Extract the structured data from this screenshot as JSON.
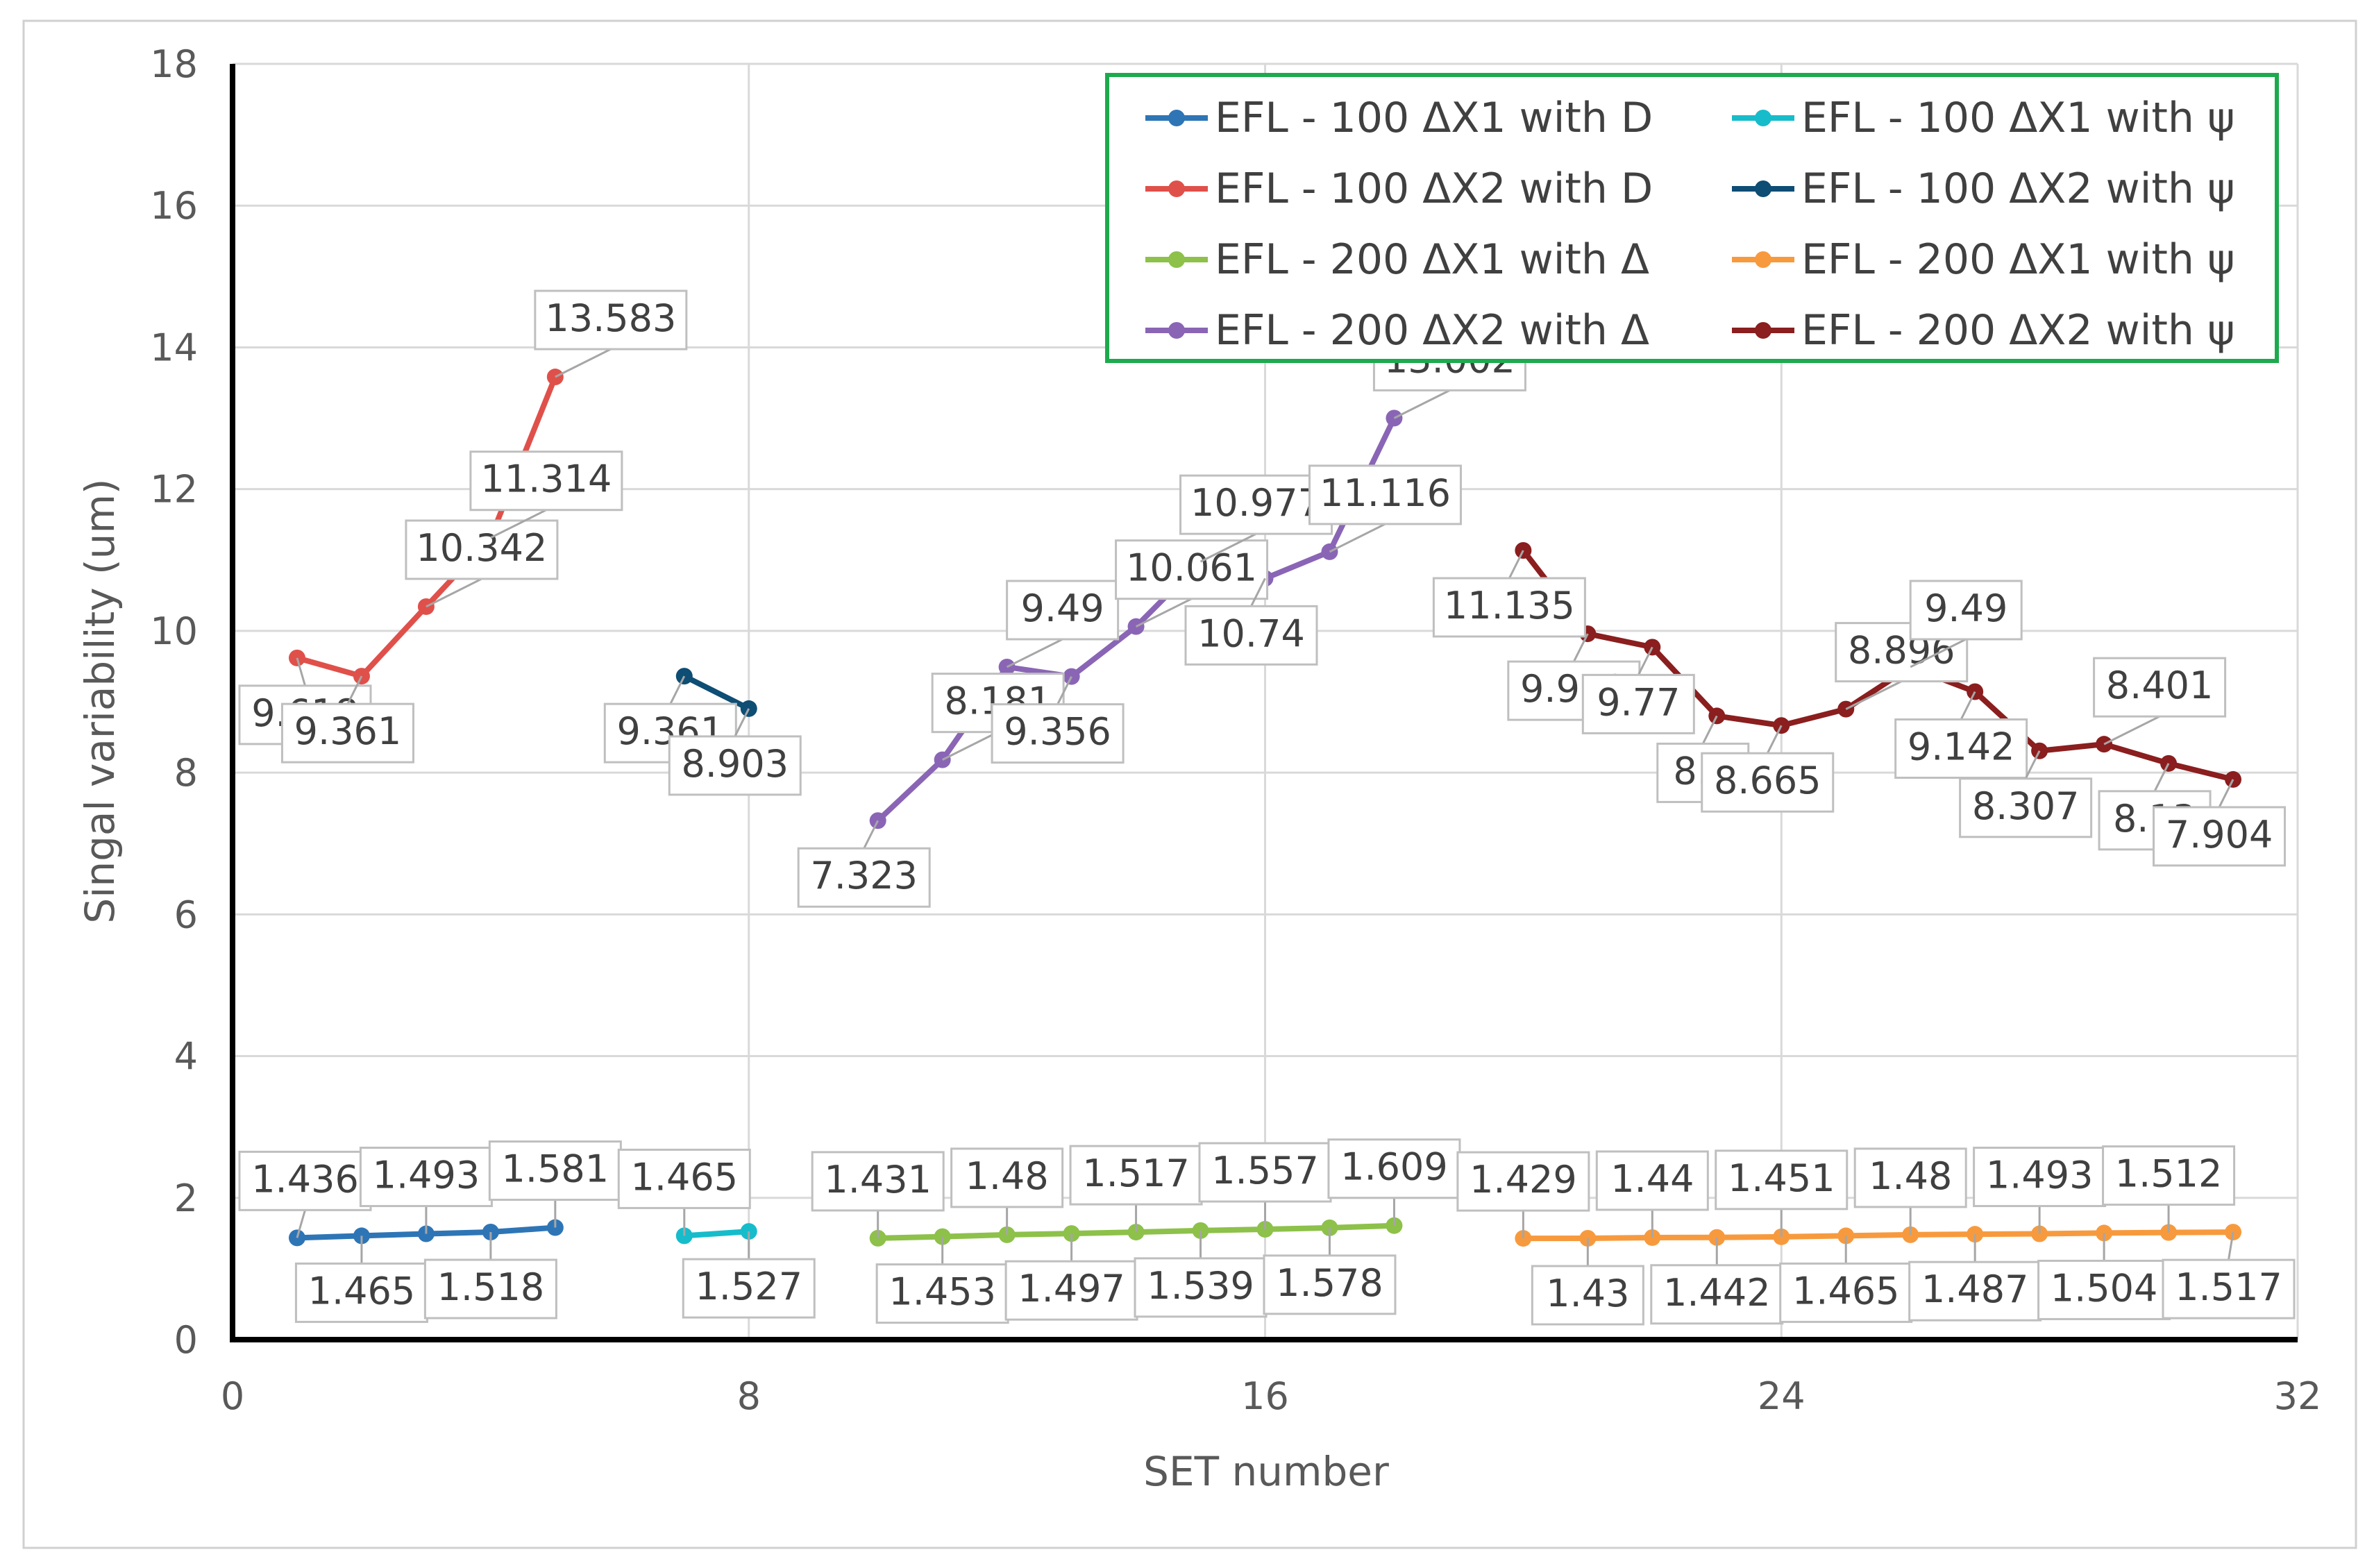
{
  "chart_data": {
    "type": "line",
    "title": "",
    "xlabel": "SET number",
    "ylabel": "Singal variability (um)",
    "xlim": [
      0,
      32
    ],
    "ylim": [
      0,
      18
    ],
    "xticks": [
      0,
      8,
      16,
      24,
      32
    ],
    "yticks": [
      0,
      2,
      4,
      6,
      8,
      10,
      12,
      14,
      16,
      18
    ],
    "grid": true,
    "legend_position": "top-right",
    "series": [
      {
        "name": "EFL - 100 ΔX1 with D",
        "color": "#2E75B6",
        "x": [
          1,
          2,
          3,
          4,
          5
        ],
        "values": [
          1.436,
          1.465,
          1.493,
          1.518,
          1.581
        ]
      },
      {
        "name": "EFL - 100 ΔX1 with ψ",
        "color": "#17BCCB",
        "x": [
          7,
          8
        ],
        "values": [
          1.465,
          1.527
        ]
      },
      {
        "name": "EFL - 100 ΔX2 with D",
        "color": "#E0504A",
        "x": [
          1,
          2,
          3,
          4,
          5
        ],
        "values": [
          9.618,
          9.361,
          10.342,
          11.314,
          13.583
        ]
      },
      {
        "name": "EFL - 100 ΔX2 with ψ",
        "color": "#0E4D74",
        "x": [
          7,
          8
        ],
        "values": [
          9.361,
          8.903
        ]
      },
      {
        "name": "EFL - 200 ΔX1 with Δ",
        "color": "#8DC14A",
        "x": [
          10,
          11,
          12,
          13,
          14,
          15,
          16,
          17,
          18
        ],
        "values": [
          1.431,
          1.453,
          1.48,
          1.497,
          1.517,
          1.539,
          1.557,
          1.578,
          1.609
        ]
      },
      {
        "name": "EFL - 200 ΔX1 with ψ",
        "color": "#F79A3E",
        "x": [
          20,
          21,
          22,
          23,
          24,
          25,
          26,
          27,
          28,
          29,
          30,
          31
        ],
        "values": [
          1.429,
          1.43,
          1.44,
          1.442,
          1.451,
          1.465,
          1.48,
          1.487,
          1.493,
          1.504,
          1.512,
          1.517
        ]
      },
      {
        "name": "EFL - 200 ΔX2 with Δ",
        "color": "#8A65B5",
        "x": [
          10,
          11,
          12,
          13,
          14,
          15,
          16,
          17,
          18
        ],
        "values": [
          7.323,
          8.181,
          9.49,
          9.356,
          10.061,
          10.977,
          10.74,
          11.116,
          13.002
        ]
      },
      {
        "name": "EFL - 200 ΔX2 with ψ",
        "color": "#8B1E1E",
        "x": [
          20,
          21,
          22,
          23,
          24,
          25,
          26,
          27,
          28,
          29,
          30,
          31
        ],
        "values": [
          11.135,
          9.959,
          9.77,
          8.8,
          8.665,
          8.896,
          9.49,
          9.142,
          8.307,
          8.401,
          8.13,
          7.904
        ]
      }
    ]
  }
}
